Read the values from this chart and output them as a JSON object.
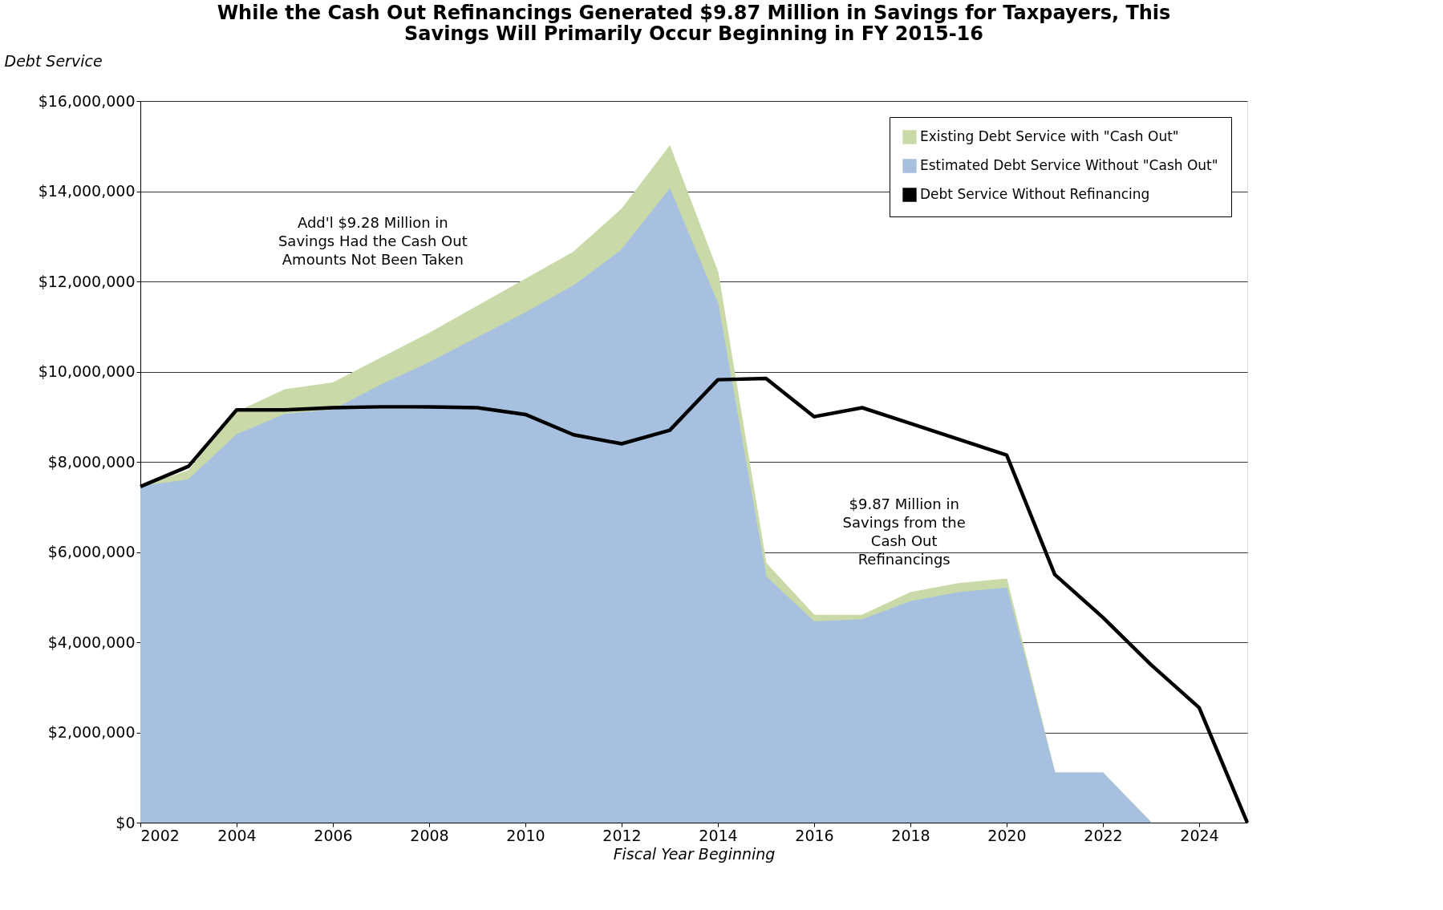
{
  "chart_data": {
    "type": "area",
    "title": "While the Cash Out Refinancings Generated $9.87 Million in Savings for Taxpayers, This\nSavings Will Primarily Occur Beginning in FY 2015-16",
    "xlabel": "Fiscal Year Beginning",
    "ylabel": "Debt Service",
    "x": [
      2002,
      2003,
      2004,
      2005,
      2006,
      2007,
      2008,
      2009,
      2010,
      2011,
      2012,
      2013,
      2014,
      2015,
      2016,
      2017,
      2018,
      2019,
      2020,
      2021,
      2022,
      2023,
      2024,
      2025
    ],
    "series": [
      {
        "name": "Existing Debt Service with \"Cash Out\"",
        "color": "#c9daa8",
        "values": [
          7450000,
          7800000,
          9100000,
          9600000,
          9750000,
          10300000,
          10850000,
          11450000,
          12050000,
          12650000,
          13600000,
          15000000,
          12200000,
          5750000,
          4600000,
          4600000,
          5100000,
          5300000,
          5400000,
          1100000,
          1100000,
          0,
          null,
          null
        ]
      },
      {
        "name": "Estimated Debt Service Without \"Cash Out\"",
        "color": "#a7c0df",
        "values": [
          7450000,
          7600000,
          8600000,
          9050000,
          9150000,
          9700000,
          10200000,
          10750000,
          11300000,
          11900000,
          12700000,
          14050000,
          11500000,
          5450000,
          4450000,
          4500000,
          4900000,
          5100000,
          5200000,
          1100000,
          1100000,
          0,
          null,
          null
        ]
      },
      {
        "name": "Debt Service Without Refinancing",
        "color": "#000000",
        "type": "line",
        "values": [
          7450000,
          7900000,
          9150000,
          9150000,
          9200000,
          9220000,
          9220000,
          9200000,
          9050000,
          8600000,
          8400000,
          8700000,
          9820000,
          9850000,
          9000000,
          9200000,
          8850000,
          8500000,
          8150000,
          5500000,
          4550000,
          3500000,
          2550000,
          0
        ]
      }
    ],
    "xlim": [
      2002,
      2025
    ],
    "xticks": [
      2002,
      2004,
      2006,
      2008,
      2010,
      2012,
      2014,
      2016,
      2018,
      2020,
      2022,
      2024
    ],
    "ylim": [
      0,
      16000000
    ],
    "yticks": [
      {
        "value": 0,
        "label": "$0"
      },
      {
        "value": 2000000,
        "label": "$2,000,000"
      },
      {
        "value": 4000000,
        "label": "$4,000,000"
      },
      {
        "value": 6000000,
        "label": "$6,000,000"
      },
      {
        "value": 8000000,
        "label": "$8,000,000"
      },
      {
        "value": 10000000,
        "label": "$10,000,000"
      },
      {
        "value": 12000000,
        "label": "$12,000,000"
      },
      {
        "value": 14000000,
        "label": "$14,000,000"
      },
      {
        "value": 16000000,
        "label": "$16,000,000"
      }
    ],
    "grid": "y",
    "legend": "top right",
    "annotations": [
      "Add'l $9.28 Million in\nSavings Had the Cash Out\nAmounts Not Been Taken",
      "$9.87 Million in\nSavings from the\nCash Out\nRefinancings"
    ]
  }
}
